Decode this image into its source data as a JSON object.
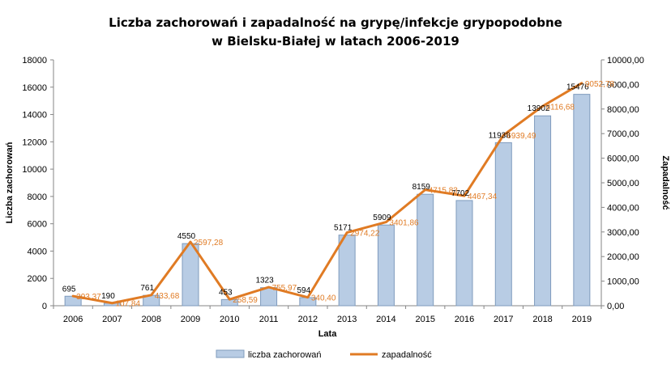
{
  "chart_data": {
    "type": "bar",
    "title": "Liczba zachorowań i zapadalność na grypę/infekcje grypopodobne",
    "subtitle": "w Bielsku-Białej w latach 2006-2019",
    "xlabel": "Lata",
    "ylabel": "Liczba zachorowań",
    "y2label": "Zapadalność",
    "ylim": [
      0,
      18000
    ],
    "y_ticks": [
      "0",
      "2000",
      "4000",
      "6000",
      "8000",
      "10000",
      "12000",
      "14000",
      "16000",
      "18000"
    ],
    "y2lim": [
      0,
      10000
    ],
    "y2_ticks": [
      "0,00",
      "1000,00",
      "2000,00",
      "3000,00",
      "4000,00",
      "5000,00",
      "6000,00",
      "7000,00",
      "8000,00",
      "9000,00",
      "10000,00"
    ],
    "grid": false,
    "legend_position": "bottom",
    "categories": [
      "2006",
      "2007",
      "2008",
      "2009",
      "2010",
      "2011",
      "2012",
      "2013",
      "2014",
      "2015",
      "2016",
      "2017",
      "2018",
      "2019"
    ],
    "series": [
      {
        "name": "liczba zachorowań",
        "type": "bar",
        "axis": "left",
        "color": "#b8cce4",
        "stroke": "#7f9bbd",
        "values": [
          695,
          190,
          761,
          4550,
          453,
          1323,
          594,
          5171,
          5909,
          8159,
          7702,
          11938,
          13902,
          15476
        ],
        "labels": [
          "695",
          "190",
          "761",
          "4550",
          "453",
          "1323",
          "594",
          "5171",
          "5909",
          "8159",
          "7702",
          "11938",
          "13902",
          "15476"
        ]
      },
      {
        "name": "zapadalność",
        "type": "line",
        "axis": "right",
        "color": "#e07b24",
        "values": [
          393.37,
          107.84,
          433.68,
          2597.28,
          258.59,
          755.97,
          340.4,
          2974.22,
          3401.86,
          4715.83,
          4467.34,
          6939.49,
          8116.68,
          9052.78
        ],
        "labels": [
          "393,37",
          "107,84",
          "433,68",
          "2597,28",
          "258,59",
          "755,97",
          "340,40",
          "2974,22",
          "3401,86",
          "4715,83",
          "4467,34",
          "6939,49",
          "8116,68",
          "9052,78"
        ]
      }
    ]
  }
}
